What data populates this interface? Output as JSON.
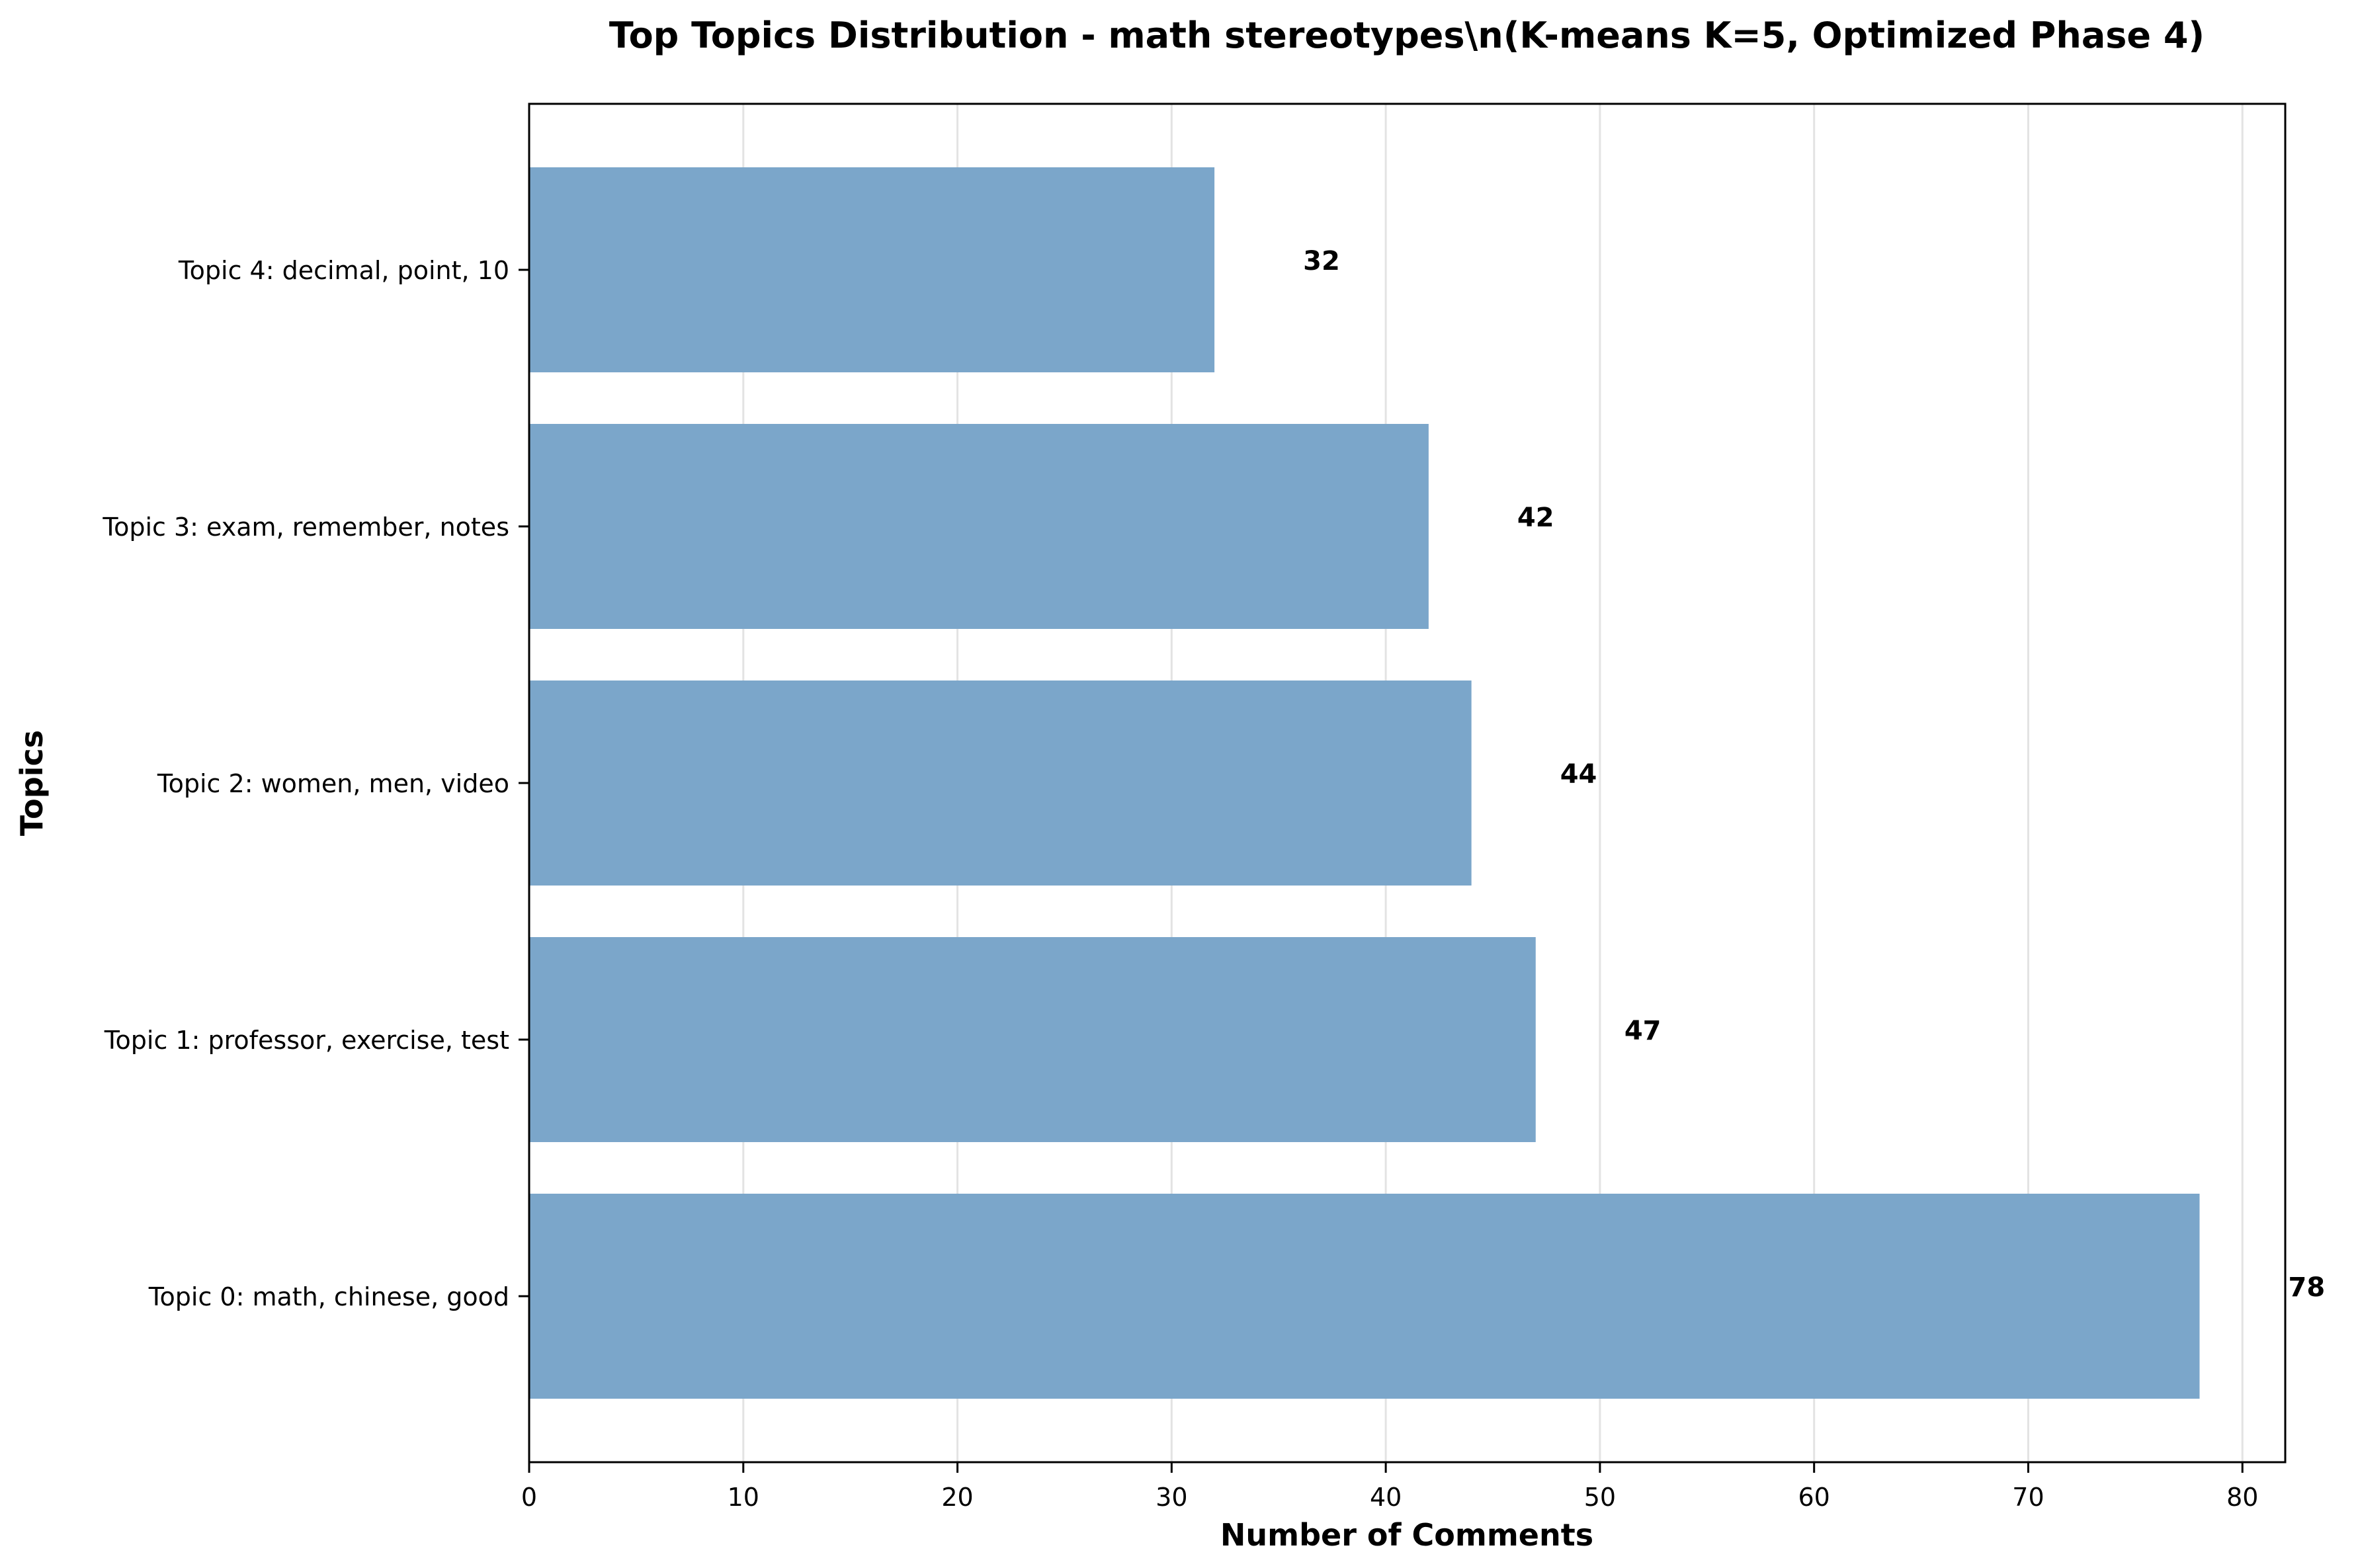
{
  "chart_data": {
    "type": "bar",
    "orientation": "horizontal",
    "title_line1": "Top Topics Distribution - math stereotypes\\n(K-means K=5, Optimized Phase 4)",
    "xlabel": "Number of Comments",
    "ylabel": "Topics",
    "categories": [
      "Topic 0: math, chinese, good",
      "Topic 1: professor, exercise, test",
      "Topic 2: women, men, video",
      "Topic 3: exam, remember, notes",
      "Topic 4: decimal, point, 10"
    ],
    "values": [
      78,
      47,
      44,
      42,
      32
    ],
    "value_labels": [
      "78",
      "47",
      "44",
      "42",
      "32"
    ],
    "xlim": [
      0,
      82
    ],
    "xticks": [
      0,
      10,
      20,
      30,
      40,
      50,
      60,
      70,
      80
    ],
    "xtick_labels": [
      "0",
      "10",
      "20",
      "30",
      "40",
      "50",
      "60",
      "70",
      "80"
    ],
    "grid": "vertical",
    "colors": {
      "bar": "#7ba6ca",
      "grid": "#e3e3e3",
      "axis": "#000000"
    }
  }
}
